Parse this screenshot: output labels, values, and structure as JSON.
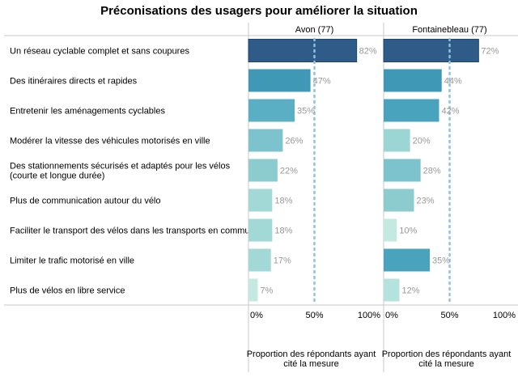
{
  "chart_data": {
    "type": "bar",
    "orientation": "horizontal",
    "title": "Préconisations des usagers pour améliorer la situation",
    "categories": [
      [
        "Un réseau cyclable complet et sans coupures"
      ],
      [
        "Des itinéraires directs et rapides"
      ],
      [
        "Entretenir les aménagements cyclables"
      ],
      [
        "Modérer la vitesse des véhicules motorisés en ville"
      ],
      [
        "Des stationnements sécurisés et adaptés pour les vélos",
        "(courte et longue durée)"
      ],
      [
        "Plus de communication autour du vélo"
      ],
      [
        "Faciliter le transport des vélos dans les transports en commun"
      ],
      [
        "Limiter le trafic motorisé en ville"
      ],
      [
        "Plus de vélos en libre service"
      ]
    ],
    "xlim": [
      0,
      100
    ],
    "x_ticks": [
      "0%",
      "50%",
      "100%"
    ],
    "reference_line": 50,
    "xlabel": [
      "Proportion des répondants ayant",
      "cité la mesure"
    ],
    "panels": [
      {
        "name": "Avon (77)",
        "values": [
          82,
          47,
          35,
          26,
          22,
          18,
          18,
          17,
          7
        ],
        "labels": [
          "82%",
          "47%",
          "35%",
          "26%",
          "22%",
          "18%",
          "18%",
          "17%",
          "7%"
        ],
        "colors": [
          "#2e5b88",
          "#3f99b6",
          "#5aafc4",
          "#7cc3ce",
          "#8ccccf",
          "#a2d8d6",
          "#a2d8d6",
          "#a2d8d6",
          "#c4e9e0"
        ]
      },
      {
        "name": "Fontainebleau (77)",
        "values": [
          72,
          44,
          42,
          20,
          28,
          23,
          10,
          35,
          12
        ],
        "labels": [
          "72%",
          "44%",
          "42%",
          "20%",
          "28%",
          "23%",
          "10%",
          "35%",
          "12%"
        ],
        "colors": [
          "#2e5b88",
          "#3f99b6",
          "#4aa3bc",
          "#9bd5d4",
          "#7cc3ce",
          "#8ccccf",
          "#c4e9e0",
          "#4aa3bc",
          "#b5e2dc"
        ]
      }
    ],
    "grid": false,
    "colors": {
      "reference_line": "#8fc1e3",
      "label": "#999999",
      "axis": "#c8c8c8"
    }
  }
}
